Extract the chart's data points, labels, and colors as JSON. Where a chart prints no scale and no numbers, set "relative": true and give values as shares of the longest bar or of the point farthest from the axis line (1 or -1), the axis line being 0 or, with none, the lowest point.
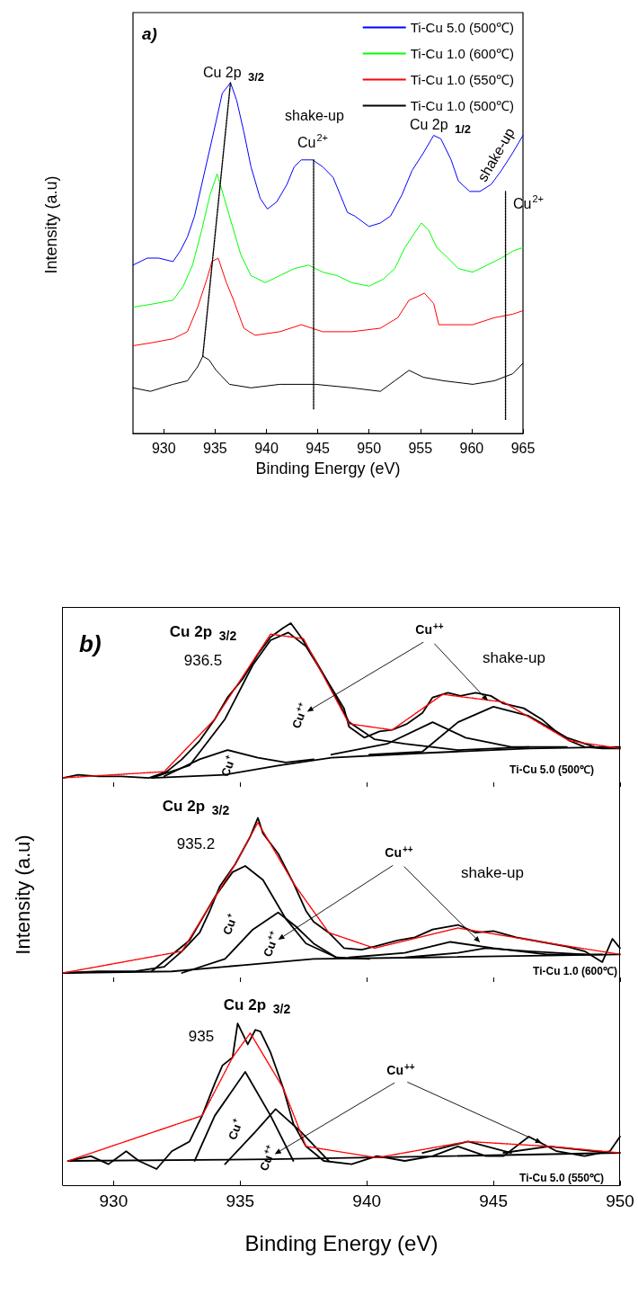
{
  "chart_data": [
    {
      "type": "line",
      "title": "a)",
      "xlabel": "Binding Energy (eV)",
      "ylabel": "Intensity (a.u)",
      "relative": true,
      "xlim": [
        927,
        965
      ],
      "xticks": [
        930,
        935,
        940,
        945,
        950,
        955,
        960,
        965
      ],
      "tick_labels": "x",
      "legend": "top right",
      "marker": "none",
      "grid": false,
      "series": [
        {
          "name": "Ti-Cu 5.0 (500℃)",
          "color": "#0000ff",
          "x": [
            927.0,
            928.4,
            929.5,
            930.9,
            931.6,
            932.3,
            933.0,
            933.7,
            934.4,
            935.1,
            935.7,
            936.5,
            937.1,
            937.8,
            938.5,
            939.4,
            940.1,
            941.0,
            942.0,
            942.7,
            943.4,
            944.5,
            945.5,
            946.5,
            947.2,
            947.9,
            948.6,
            950.0,
            951.1,
            952.1,
            953.2,
            954.2,
            955.3,
            956.3,
            957.0,
            958.0,
            958.7,
            959.8,
            960.8,
            961.9,
            962.9,
            964.0,
            965.0
          ],
          "values": [
            0.48,
            0.5,
            0.5,
            0.49,
            0.52,
            0.56,
            0.62,
            0.71,
            0.8,
            0.89,
            0.97,
            1.0,
            0.95,
            0.86,
            0.76,
            0.67,
            0.64,
            0.66,
            0.71,
            0.76,
            0.78,
            0.78,
            0.76,
            0.73,
            0.68,
            0.63,
            0.62,
            0.59,
            0.6,
            0.62,
            0.68,
            0.75,
            0.8,
            0.85,
            0.84,
            0.78,
            0.72,
            0.69,
            0.69,
            0.71,
            0.75,
            0.8,
            0.85
          ]
        },
        {
          "name": "Ti-Cu 1.0 (600℃)",
          "color": "#00ff00",
          "x": [
            927.0,
            929.1,
            930.9,
            931.9,
            932.8,
            933.7,
            934.5,
            935.2,
            935.9,
            936.6,
            937.5,
            938.5,
            939.9,
            941.3,
            942.7,
            944.1,
            945.5,
            946.9,
            948.3,
            950.0,
            951.4,
            952.5,
            953.5,
            954.4,
            955.1,
            955.8,
            956.6,
            957.7,
            958.7,
            960.1,
            961.5,
            962.9,
            964.0,
            965.0
          ],
          "values": [
            0.36,
            0.37,
            0.38,
            0.42,
            0.48,
            0.58,
            0.68,
            0.74,
            0.67,
            0.6,
            0.51,
            0.45,
            0.43,
            0.45,
            0.47,
            0.48,
            0.46,
            0.45,
            0.43,
            0.42,
            0.44,
            0.47,
            0.53,
            0.57,
            0.6,
            0.58,
            0.53,
            0.5,
            0.47,
            0.46,
            0.48,
            0.5,
            0.52,
            0.53
          ]
        },
        {
          "name": "Ti-Cu 1.0 (550℃)",
          "color": "#ff0000",
          "x": [
            927.0,
            929.1,
            930.9,
            932.3,
            933.3,
            934.2,
            934.7,
            935.3,
            936.1,
            936.8,
            937.8,
            938.9,
            941.3,
            943.4,
            945.5,
            948.3,
            951.1,
            952.8,
            953.9,
            954.7,
            955.4,
            956.3,
            956.8,
            958.0,
            960.1,
            962.2,
            964.0,
            965.0
          ],
          "values": [
            0.25,
            0.26,
            0.27,
            0.29,
            0.36,
            0.44,
            0.49,
            0.5,
            0.43,
            0.38,
            0.3,
            0.28,
            0.29,
            0.31,
            0.29,
            0.29,
            0.3,
            0.33,
            0.38,
            0.39,
            0.4,
            0.37,
            0.31,
            0.31,
            0.31,
            0.33,
            0.34,
            0.35
          ]
        },
        {
          "name": "Ti-Cu 1.0 (500℃)",
          "color": "#000000",
          "x": [
            927.0,
            928.7,
            930.9,
            932.3,
            933.3,
            933.8,
            934.4,
            935.1,
            936.4,
            938.5,
            941.3,
            944.8,
            948.3,
            951.1,
            952.5,
            953.9,
            955.3,
            957.3,
            960.1,
            962.2,
            964.0,
            965.0
          ],
          "values": [
            0.13,
            0.12,
            0.14,
            0.15,
            0.19,
            0.22,
            0.21,
            0.18,
            0.14,
            0.13,
            0.14,
            0.14,
            0.13,
            0.12,
            0.15,
            0.18,
            0.16,
            0.15,
            0.14,
            0.15,
            0.17,
            0.2
          ]
        },
        {
          "color": "#000000",
          "line_style": "dotted",
          "x": [
            933.8,
            936.5
          ],
          "values": [
            0.22,
            1.0
          ]
        },
        {
          "color": "#000000",
          "line_style": "dotted",
          "x": [
            944.6,
            944.6
          ],
          "values": [
            0.07,
            0.78
          ]
        },
        {
          "color": "#000000",
          "line_style": "dotted",
          "x": [
            963.3,
            963.3
          ],
          "values": [
            0.04,
            0.69
          ]
        }
      ],
      "annotations": [
        "Cu 2p $_{3/2}$",
        "shake-up",
        "Cu$^{2+}$",
        "Cu 2p $_{1/2}$",
        "shake-up",
        "Cu$^{2+}$"
      ]
    },
    {
      "type": "line",
      "title": "b)",
      "relative": true,
      "xlim": [
        928,
        950
      ],
      "xticks": [
        930,
        935,
        940,
        945,
        950
      ],
      "tick_labels": false,
      "marker": "none",
      "grid": false,
      "series": [
        {
          "color": "#000000",
          "x": [
            928.0,
            928.6,
            929.4,
            930.3,
            931.4,
            932.1,
            932.7,
            933.4,
            934.0,
            934.5,
            935.1,
            935.7,
            936.2,
            936.7,
            937.0,
            937.4,
            937.9,
            938.5,
            939.1,
            939.3,
            939.9,
            940.5,
            941.0,
            941.6,
            942.2,
            942.6,
            943.2,
            943.7,
            944.3,
            944.9,
            945.4,
            946.2,
            946.9,
            947.4,
            948.0,
            948.6,
            949.3,
            950.0
          ],
          "values": [
            0,
            0.02,
            0.01,
            0.01,
            0,
            0.04,
            0.12,
            0.24,
            0.38,
            0.52,
            0.64,
            0.8,
            0.91,
            0.97,
            1.0,
            0.91,
            0.78,
            0.61,
            0.45,
            0.33,
            0.26,
            0.3,
            0.31,
            0.35,
            0.42,
            0.52,
            0.55,
            0.53,
            0.55,
            0.53,
            0.48,
            0.45,
            0.38,
            0.31,
            0.24,
            0.2,
            0.19,
            0.19
          ]
        },
        {
          "color": "#ff0000",
          "line_style": "dotted",
          "x": [
            928.0,
            932.0,
            934.0,
            936.2,
            937.5,
            939.3,
            941.0,
            943.0,
            945.4,
            948.0,
            950.0
          ],
          "values": [
            0,
            0.04,
            0.38,
            0.93,
            0.9,
            0.35,
            0.31,
            0.54,
            0.49,
            0.24,
            0.19
          ]
        },
        {
          "color": "#000000",
          "x": [
            931.5,
            934.4,
            936.5,
            938.6,
            942.2,
            946.4,
            950.0
          ],
          "values": [
            0,
            0.02,
            0.08,
            0.13,
            0.16,
            0.19,
            0.2
          ]
        },
        {
          "color": "#000000",
          "x": [
            932.0,
            933.4,
            934.5,
            935.7,
            936.8,
            937.9
          ],
          "values": [
            0.01,
            0.12,
            0.18,
            0.13,
            0.1,
            0.12
          ]
        },
        {
          "color": "#000000",
          "x": [
            931.5,
            933.0,
            934.4,
            935.5,
            936.2,
            936.9,
            937.6,
            938.5,
            939.3,
            940.3,
            941.5,
            943.6,
            946.4
          ],
          "values": [
            0,
            0.08,
            0.38,
            0.73,
            0.89,
            0.94,
            0.85,
            0.61,
            0.36,
            0.25,
            0.22,
            0.18,
            0.2
          ]
        },
        {
          "color": "#000000",
          "x": [
            938.6,
            940.8,
            942.6,
            943.9,
            945.7,
            947.9
          ],
          "values": [
            0.15,
            0.22,
            0.36,
            0.26,
            0.2,
            0.2
          ]
        },
        {
          "color": "#000000",
          "x": [
            940.1,
            942.2,
            943.6,
            945.0,
            946.4,
            947.9,
            949.0,
            950.0
          ],
          "values": [
            0.15,
            0.17,
            0.36,
            0.46,
            0.4,
            0.26,
            0.2,
            0.19
          ]
        }
      ],
      "annotations": [
        "Cu 2p $_{3/2}$",
        "936.5",
        "Cu$^{++}$",
        "Cu$^{++}$",
        "Cu$^{+}$",
        "Ti-Cu 5.0 (500℃)",
        "shake-up"
      ]
    },
    {
      "type": "line",
      "ylabel": "Intensity (a.u)",
      "relative": true,
      "xlim": [
        928,
        950
      ],
      "xticks": [
        930,
        935,
        940,
        945,
        950
      ],
      "tick_labels": false,
      "marker": "none",
      "grid": false,
      "series": [
        {
          "color": "#000000",
          "x": [
            928.0,
            929.4,
            930.8,
            932.0,
            932.7,
            933.4,
            933.8,
            934.2,
            934.8,
            935.1,
            935.4,
            935.7,
            935.9,
            936.5,
            937.1,
            937.6,
            937.9,
            938.5,
            939.1,
            939.8,
            940.3,
            941.2,
            941.9,
            942.6,
            943.6,
            944.3,
            945.0,
            945.9,
            946.9,
            947.9,
            948.6,
            949.3,
            949.7,
            950.0
          ],
          "values": [
            0,
            0.01,
            0.01,
            0.04,
            0.14,
            0.26,
            0.4,
            0.56,
            0.7,
            0.79,
            0.88,
            1.0,
            0.9,
            0.77,
            0.58,
            0.4,
            0.33,
            0.26,
            0.16,
            0.15,
            0.17,
            0.21,
            0.23,
            0.28,
            0.31,
            0.26,
            0.27,
            0.23,
            0.2,
            0.17,
            0.14,
            0.07,
            0.22,
            0.16
          ]
        },
        {
          "color": "#ff0000",
          "line_style": "dotted",
          "x": [
            928.0,
            932.7,
            934.8,
            935.7,
            937.1,
            938.5,
            940.3,
            943.6,
            946.9,
            950.0
          ],
          "values": [
            0,
            0.14,
            0.7,
            0.97,
            0.58,
            0.26,
            0.16,
            0.29,
            0.2,
            0.12
          ]
        },
        {
          "color": "#000000",
          "x": [
            928.0,
            932.3,
            935.1,
            937.9,
            942.2,
            950.0
          ],
          "values": [
            0,
            0.01,
            0.05,
            0.09,
            0.1,
            0.12
          ]
        },
        {
          "color": "#000000",
          "x": [
            931.5,
            933.0,
            934.0,
            934.7,
            935.2,
            935.9,
            936.8,
            937.6,
            938.8,
            940.1
          ],
          "values": [
            0.01,
            0.21,
            0.49,
            0.65,
            0.69,
            0.6,
            0.35,
            0.19,
            0.1,
            0.09
          ]
        },
        {
          "color": "#000000",
          "x": [
            932.7,
            934.4,
            935.5,
            936.5,
            937.2,
            937.9,
            938.8
          ],
          "values": [
            0,
            0.09,
            0.28,
            0.39,
            0.3,
            0.19,
            0.1
          ]
        },
        {
          "color": "#000000",
          "x": [
            939.3,
            941.5,
            943.3,
            945.0,
            947.1,
            949.3
          ],
          "values": [
            0.1,
            0.13,
            0.2,
            0.16,
            0.12,
            0.12
          ]
        },
        {
          "color": "#000000",
          "x": [
            941.5,
            943.6,
            944.7,
            946.4,
            948.6
          ],
          "values": [
            0.1,
            0.13,
            0.16,
            0.14,
            0.12
          ]
        }
      ],
      "annotations": [
        "Cu 2p $_{3/2}$",
        "935.2",
        "Cu$^{++}$",
        "Cu$^{++}$",
        "Cu$^{+}$",
        "Ti-Cu 1.0 (600℃)",
        "shake-up"
      ]
    },
    {
      "type": "line",
      "xlabel": "Binding Energy (eV)",
      "relative": true,
      "xlim": [
        928,
        950
      ],
      "xticks": [
        930,
        935,
        940,
        945,
        950
      ],
      "tick_labels": "x",
      "marker": "none",
      "grid": false,
      "series": [
        {
          "color": "#000000",
          "x": [
            928.2,
            929.1,
            929.8,
            930.5,
            931.0,
            931.7,
            932.3,
            933.0,
            933.5,
            934.0,
            934.3,
            934.7,
            934.9,
            935.3,
            935.6,
            935.8,
            936.2,
            936.7,
            937.1,
            937.6,
            938.3,
            939.4,
            940.4,
            941.5,
            942.6,
            943.6,
            944.7,
            945.4,
            946.4,
            947.5,
            948.6,
            949.6,
            950.0
          ],
          "values": [
            0.15,
            0.18,
            0.13,
            0.21,
            0.15,
            0.1,
            0.21,
            0.27,
            0.43,
            0.63,
            0.74,
            0.79,
            1.0,
            0.87,
            0.96,
            0.95,
            0.82,
            0.6,
            0.38,
            0.24,
            0.15,
            0.13,
            0.18,
            0.15,
            0.18,
            0.24,
            0.18,
            0.18,
            0.3,
            0.21,
            0.18,
            0.21,
            0.3
          ]
        },
        {
          "color": "#ff0000",
          "line_style": "dotted",
          "x": [
            928.2,
            933.5,
            934.7,
            935.4,
            936.7,
            937.6,
            940.4,
            944.0,
            947.2,
            950.0
          ],
          "values": [
            0.15,
            0.43,
            0.79,
            0.94,
            0.6,
            0.24,
            0.17,
            0.27,
            0.24,
            0.2
          ]
        },
        {
          "color": "#000000",
          "x": [
            928.2,
            936.2,
            943.3,
            950.0
          ],
          "values": [
            0.15,
            0.16,
            0.18,
            0.2
          ]
        },
        {
          "color": "#000000",
          "x": [
            933.2,
            934.0,
            935.2,
            936.2,
            937.1
          ],
          "values": [
            0.15,
            0.43,
            0.7,
            0.43,
            0.15
          ]
        },
        {
          "color": "#000000",
          "x": [
            934.4,
            935.6,
            936.4,
            937.4,
            938.5
          ],
          "values": [
            0.13,
            0.33,
            0.47,
            0.33,
            0.15
          ]
        },
        {
          "color": "#000000",
          "x": [
            942.2,
            944.0,
            945.7
          ],
          "values": [
            0.2,
            0.27,
            0.2
          ]
        },
        {
          "color": "#000000",
          "x": [
            945.4,
            947.2,
            949.6
          ],
          "values": [
            0.2,
            0.24,
            0.2
          ]
        }
      ],
      "annotations": [
        "Cu 2p $_{3/2}$",
        "935",
        "Cu$^{++}$",
        "Cu$^{++}$",
        "Cu$^{+}$",
        "Ti-Cu 5.0 (550℃)"
      ]
    }
  ]
}
